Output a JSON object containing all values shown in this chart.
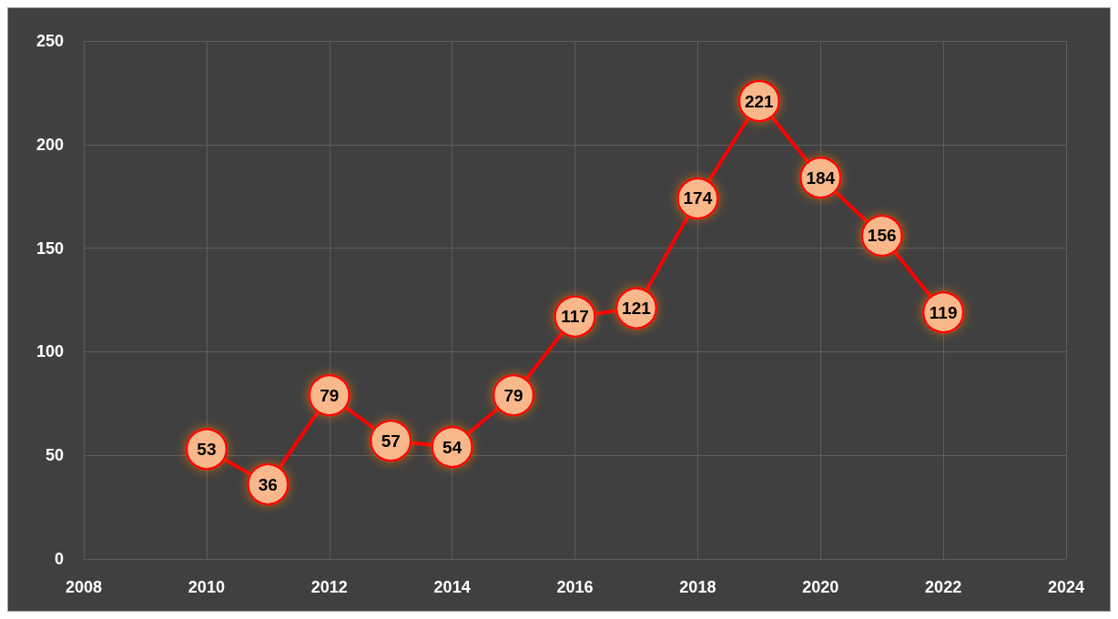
{
  "chart_data": {
    "type": "line",
    "x": [
      2010,
      2011,
      2012,
      2013,
      2014,
      2015,
      2016,
      2017,
      2018,
      2019,
      2020,
      2021,
      2022
    ],
    "series": [
      {
        "color": "#ff0000",
        "values": [
          53,
          36,
          79,
          57,
          54,
          79,
          117,
          121,
          174,
          221,
          184,
          156,
          119
        ]
      }
    ],
    "xlim": [
      2008,
      2024
    ],
    "xticks": [
      2008,
      2010,
      2012,
      2014,
      2016,
      2018,
      2020,
      2022,
      2024
    ],
    "ylim": [
      0,
      250
    ],
    "yticks": [
      0,
      50,
      100,
      150,
      200,
      250
    ],
    "grid": true,
    "marker": "circle",
    "line_style": "solid",
    "data_labels": true
  }
}
